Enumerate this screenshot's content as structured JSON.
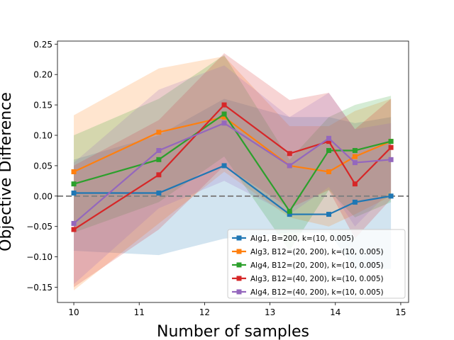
{
  "chart_data": {
    "type": "line",
    "xlabel": "Number of samples",
    "ylabel": "Objective Difference",
    "xlim": [
      9.75,
      15.12
    ],
    "ylim": [
      -0.175,
      0.255
    ],
    "xticks": [
      10,
      11,
      12,
      13,
      14,
      15
    ],
    "yticks": [
      -0.15,
      -0.1,
      -0.05,
      0.0,
      0.05,
      0.1,
      0.15,
      0.2,
      0.25
    ],
    "ytick_labels": [
      "−0.15",
      "−0.10",
      "−0.05",
      "0.00",
      "0.05",
      "0.10",
      "0.15",
      "0.20",
      "0.25"
    ],
    "reference_line": {
      "y": 0.0,
      "style": "dashed",
      "color": "#808080"
    },
    "grid": false,
    "legend_position": "lower-right",
    "x": [
      10.0,
      11.3,
      12.3,
      13.3,
      13.9,
      14.3,
      14.85
    ],
    "series": [
      {
        "name": "Alg1, B=200, k=(10, 0.005)",
        "color": "#1f77b4",
        "values": [
          0.005,
          0.005,
          0.05,
          -0.03,
          -0.03,
          -0.01,
          0.0
        ],
        "lower": [
          -0.09,
          -0.097,
          -0.07,
          -0.06,
          -0.06,
          -0.12,
          -0.12
        ],
        "upper": [
          0.06,
          0.1,
          0.16,
          0.13,
          0.13,
          0.12,
          0.13
        ]
      },
      {
        "name": "Alg3, B12=(20, 200), k=(10, 0.005)",
        "color": "#ff7f0e",
        "values": [
          0.04,
          0.105,
          0.13,
          0.05,
          0.04,
          0.065,
          0.09
        ],
        "lower": [
          -0.155,
          -0.045,
          0.04,
          -0.035,
          -0.05,
          -0.03,
          0.0
        ],
        "upper": [
          0.133,
          0.21,
          0.23,
          0.115,
          0.115,
          0.14,
          0.16
        ]
      },
      {
        "name": "Alg4, B12=(20, 200), k=(10, 0.005)",
        "color": "#2ca02c",
        "values": [
          0.02,
          0.06,
          0.135,
          -0.025,
          0.075,
          0.075,
          0.09
        ],
        "lower": [
          -0.06,
          -0.01,
          0.065,
          -0.09,
          0.01,
          -0.035,
          -0.01
        ],
        "upper": [
          0.1,
          0.16,
          0.232,
          0.06,
          0.13,
          0.15,
          0.165
        ]
      },
      {
        "name": "Alg3, B12=(40, 200), k=(10, 0.005)",
        "color": "#d62728",
        "values": [
          -0.055,
          0.035,
          0.15,
          0.07,
          0.09,
          0.02,
          0.08
        ],
        "lower": [
          -0.15,
          -0.055,
          0.05,
          -0.02,
          0.01,
          -0.07,
          -0.005
        ],
        "upper": [
          0.05,
          0.125,
          0.235,
          0.158,
          0.17,
          0.11,
          0.16
        ]
      },
      {
        "name": "Alg4, B12=(40, 200), k=(10, 0.005)",
        "color": "#9467bd",
        "values": [
          -0.045,
          0.075,
          0.12,
          0.05,
          0.095,
          0.055,
          0.06
        ],
        "lower": [
          -0.145,
          -0.02,
          0.025,
          -0.03,
          0.015,
          -0.05,
          0.01
        ],
        "upper": [
          0.055,
          0.175,
          0.215,
          0.13,
          0.17,
          0.11,
          0.12
        ]
      }
    ]
  }
}
